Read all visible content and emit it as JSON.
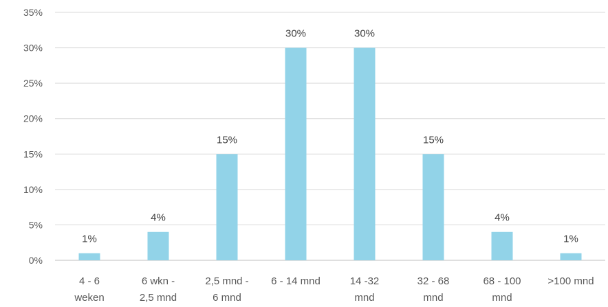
{
  "chart_data": {
    "type": "bar",
    "title": "",
    "xlabel": "",
    "ylabel": "",
    "categories": [
      [
        "4 - 6",
        "weken"
      ],
      [
        "6 wkn -",
        "2,5 mnd"
      ],
      [
        "2,5 mnd -",
        "6 mnd"
      ],
      [
        "6 - 14 mnd"
      ],
      [
        "14 -32",
        "mnd"
      ],
      [
        "32 - 68",
        "mnd"
      ],
      [
        "68 - 100",
        "mnd"
      ],
      [
        ">100 mnd"
      ]
    ],
    "values": [
      1,
      4,
      15,
      30,
      30,
      15,
      4,
      1
    ],
    "data_labels": [
      "1%",
      "4%",
      "15%",
      "30%",
      "30%",
      "15%",
      "4%",
      "1%"
    ],
    "ylim": [
      0,
      35
    ],
    "yticks": [
      0,
      5,
      10,
      15,
      20,
      25,
      30,
      35
    ],
    "ytick_labels": [
      "0%",
      "5%",
      "10%",
      "15%",
      "20%",
      "25%",
      "30%",
      "35%"
    ],
    "grid": true,
    "legend": "none",
    "bar_color": "#92d3e8"
  }
}
